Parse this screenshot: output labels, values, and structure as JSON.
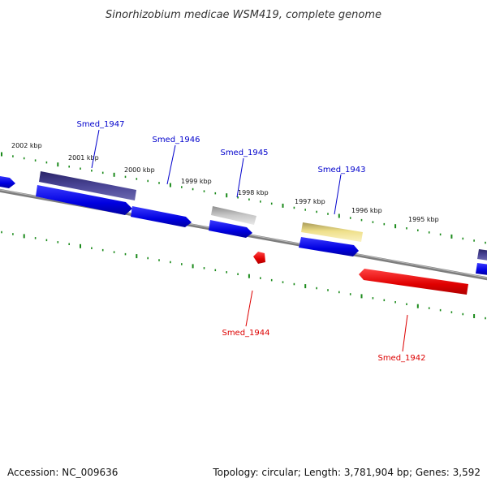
{
  "title": "Sinorhizobium medicae WSM419, complete genome",
  "accession": "Accession: NC_009636",
  "topology": "Topology: circular; Length: 3,781,904 bp; Genes: 3,592",
  "kbp_ticks": [
    "2002 kbp",
    "2001 kbp",
    "2000 kbp",
    "1999 kbp",
    "1998 kbp",
    "1997 kbp",
    "1996 kbp",
    "1995 kbp"
  ],
  "genes": [
    {
      "label": "Smed_1947",
      "strand": "forward",
      "color": "#0000cc"
    },
    {
      "label": "Smed_1946",
      "strand": "forward",
      "color": "#0000cc"
    },
    {
      "label": "Smed_1945",
      "strand": "forward",
      "color": "#0000cc"
    },
    {
      "label": "Smed_1944",
      "strand": "reverse",
      "color": "#dd0000"
    },
    {
      "label": "Smed_1943",
      "strand": "forward",
      "color": "#0000cc"
    },
    {
      "label": "Smed_1942",
      "strand": "reverse",
      "color": "#dd0000"
    }
  ],
  "colors": {
    "forward_cds": "#0000ee",
    "reverse_cds": "#ee0000",
    "backbone": "#808080",
    "tick_green": "#1a8a1a",
    "feature_dark_blue": "#3a3580",
    "feature_gray": "#aaaaaa",
    "feature_yellow": "#efe08a"
  }
}
